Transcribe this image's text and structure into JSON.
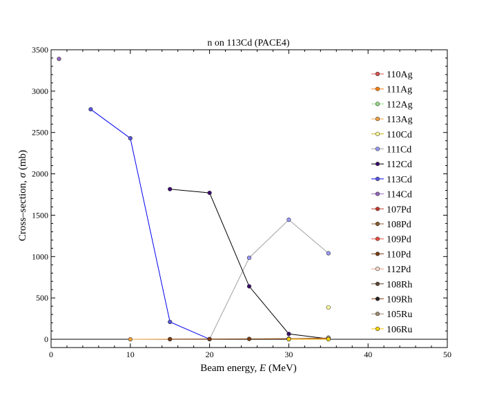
{
  "chart_data": {
    "type": "line",
    "title": "n on 113Cd (PACE4)",
    "xlabel_prefix": "Beam energy, ",
    "xlabel_var": "E",
    "xlabel_suffix": " (MeV)",
    "ylabel_prefix": "Cross–section, ",
    "ylabel_var": "σ",
    "ylabel_suffix": " (mb)",
    "xlim": [
      0,
      50
    ],
    "ylim": [
      -100,
      3500
    ],
    "xticks": [
      0,
      10,
      20,
      30,
      40,
      50
    ],
    "xtick_labels": [
      "0",
      "10",
      "20",
      "30",
      "40",
      "50"
    ],
    "yticks": [
      0,
      500,
      1000,
      1500,
      2000,
      2500,
      3000,
      3500
    ],
    "ytick_labels": [
      "0",
      "500",
      "1000",
      "1500",
      "2000",
      "2500",
      "3000",
      "3500"
    ],
    "grid": false,
    "legend_position": "right",
    "series": [
      {
        "name": "110Ag",
        "color": "#d9534f",
        "marker_fill": "#d9534f",
        "points": [
          [
            35,
            5
          ]
        ]
      },
      {
        "name": "111Ag",
        "color": "#ff7f0e",
        "marker_fill": "#ff7f0e",
        "points": [
          [
            30,
            3
          ],
          [
            35,
            8
          ]
        ]
      },
      {
        "name": "112Ag",
        "color": "#98df8a",
        "marker_fill": "#98df8a",
        "points": [
          [
            30,
            2
          ],
          [
            35,
            6
          ]
        ]
      },
      {
        "name": "113Ag",
        "color": "#f4a442",
        "marker_fill": "#f4a442",
        "points": [
          [
            10,
            0
          ],
          [
            15,
            2
          ],
          [
            20,
            3
          ],
          [
            25,
            5
          ],
          [
            30,
            8
          ],
          [
            35,
            12
          ]
        ]
      },
      {
        "name": "110Cd",
        "color": "#c8b400",
        "marker_fill": "#ffff99",
        "points": [
          [
            35,
            385
          ]
        ]
      },
      {
        "name": "111Cd",
        "color": "#a0a0a0",
        "marker_fill": "#9999ff",
        "points": [
          [
            20,
            2
          ],
          [
            25,
            985
          ],
          [
            30,
            1445
          ],
          [
            35,
            1040
          ]
        ]
      },
      {
        "name": "112Cd",
        "color": "#000000",
        "marker_fill": "#3a0a6e",
        "points": [
          [
            15,
            1815
          ],
          [
            20,
            1770
          ],
          [
            25,
            640
          ],
          [
            30,
            65
          ],
          [
            35,
            5
          ]
        ]
      },
      {
        "name": "113Cd",
        "color": "#0000ee",
        "marker_fill": "#5555dd",
        "points": [
          [
            5,
            2780
          ],
          [
            10,
            2430
          ],
          [
            15,
            210
          ],
          [
            20,
            2
          ]
        ]
      },
      {
        "name": "114Cd",
        "color": "#9467bd",
        "marker_fill": "#9467bd",
        "points": [
          [
            1,
            3390
          ]
        ]
      },
      {
        "name": "107Pd",
        "color": "#c0392b",
        "marker_fill": "#c0392b",
        "points": [
          [
            35,
            3
          ]
        ]
      },
      {
        "name": "108Pd",
        "color": "#8b5a2b",
        "marker_fill": "#8b5a2b",
        "points": [
          [
            35,
            4
          ]
        ]
      },
      {
        "name": "109Pd",
        "color": "#e74c3c",
        "marker_fill": "#e74c3c",
        "points": [
          [
            30,
            5
          ],
          [
            35,
            10
          ]
        ]
      },
      {
        "name": "110Pd",
        "color": "#7a3b10",
        "marker_fill": "#7a3b10",
        "points": [
          [
            15,
            1
          ],
          [
            20,
            2
          ],
          [
            25,
            4
          ],
          [
            30,
            6
          ],
          [
            35,
            15
          ]
        ]
      },
      {
        "name": "112Pd",
        "color": "#e9967a",
        "marker_fill": "#fbe0d0",
        "points": [
          [
            30,
            2
          ],
          [
            35,
            5
          ]
        ]
      },
      {
        "name": "108Rh",
        "color": "#5a4632",
        "marker_fill": "#5a4632",
        "points": [
          [
            35,
            3
          ]
        ]
      },
      {
        "name": "109Rh",
        "color": "#8b4513",
        "marker_fill": "#222222",
        "points": [
          [
            35,
            8
          ]
        ]
      },
      {
        "name": "105Ru",
        "color": "#9c8b6e",
        "marker_fill": "#9c8b6e",
        "points": [
          [
            35,
            20
          ]
        ]
      },
      {
        "name": "106Ru",
        "color": "#ffc000",
        "marker_fill": "#ffd700",
        "points": [
          [
            30,
            1
          ],
          [
            35,
            1
          ]
        ]
      }
    ]
  }
}
